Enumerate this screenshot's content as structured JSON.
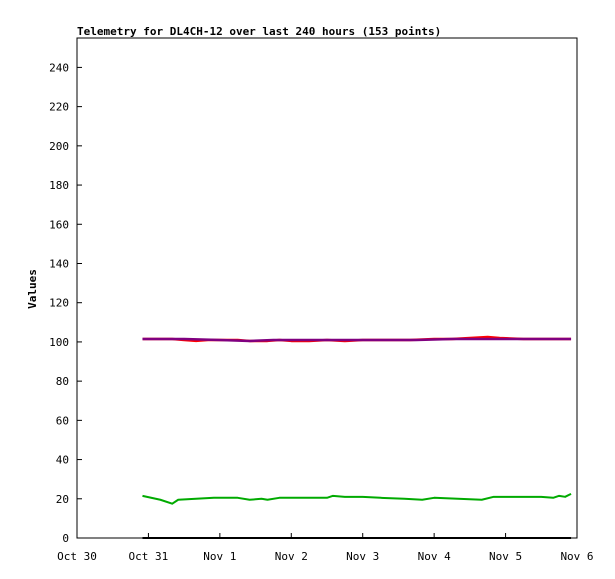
{
  "chart_data": {
    "type": "line",
    "title": "Telemetry for DL4CH-12 over last 240 hours (153 points)",
    "ylabel": "Values",
    "xlabel": "",
    "ylim": [
      0,
      255
    ],
    "grid": false,
    "legend": "none",
    "x_range": [
      "2023-10-30T00:00",
      "2023-11-06T00:00"
    ],
    "x_ticks": [
      {
        "date": "2023-10-30T00:00",
        "label": "Oct 30"
      },
      {
        "date": "2023-10-31T00:00",
        "label": "Oct 31"
      },
      {
        "date": "2023-11-01T00:00",
        "label": "Nov 1"
      },
      {
        "date": "2023-11-02T00:00",
        "label": "Nov 2"
      },
      {
        "date": "2023-11-03T00:00",
        "label": "Nov 3"
      },
      {
        "date": "2023-11-04T00:00",
        "label": "Nov 4"
      },
      {
        "date": "2023-11-05T00:00",
        "label": "Nov 5"
      },
      {
        "date": "2023-11-06T00:00",
        "label": "Nov 6"
      }
    ],
    "y_ticks": [
      0,
      20,
      40,
      60,
      80,
      100,
      120,
      140,
      160,
      180,
      200,
      220,
      240
    ],
    "series": [
      {
        "color": "#ff0000",
        "points": [
          [
            "2023-10-30T22:00",
            101.5
          ],
          [
            "2023-10-31T08:00",
            101.5
          ],
          [
            "2023-10-31T12:00",
            101.0
          ],
          [
            "2023-10-31T16:00",
            100.5
          ],
          [
            "2023-10-31T20:00",
            101.0
          ],
          [
            "2023-11-01T00:00",
            101.0
          ],
          [
            "2023-11-01T06:00",
            101.0
          ],
          [
            "2023-11-01T10:00",
            100.5
          ],
          [
            "2023-11-01T16:00",
            100.5
          ],
          [
            "2023-11-01T20:00",
            101.0
          ],
          [
            "2023-11-02T00:00",
            100.5
          ],
          [
            "2023-11-02T06:00",
            100.5
          ],
          [
            "2023-11-02T12:00",
            101.0
          ],
          [
            "2023-11-02T18:00",
            100.5
          ],
          [
            "2023-11-03T00:00",
            101.0
          ],
          [
            "2023-11-03T08:00",
            101.0
          ],
          [
            "2023-11-03T16:00",
            101.0
          ],
          [
            "2023-11-04T00:00",
            101.5
          ],
          [
            "2023-11-04T06:00",
            101.5
          ],
          [
            "2023-11-04T12:00",
            102.0
          ],
          [
            "2023-11-04T18:00",
            102.5
          ],
          [
            "2023-11-04T22:00",
            102.0
          ],
          [
            "2023-11-05T06:00",
            101.5
          ],
          [
            "2023-11-05T14:00",
            101.5
          ],
          [
            "2023-11-05T22:00",
            101.5
          ]
        ]
      },
      {
        "color": "#800080",
        "points": [
          [
            "2023-10-30T22:00",
            101.5
          ],
          [
            "2023-10-31T12:00",
            101.5
          ],
          [
            "2023-11-01T00:00",
            101.0
          ],
          [
            "2023-11-01T10:00",
            100.5
          ],
          [
            "2023-11-01T18:00",
            101.0
          ],
          [
            "2023-11-02T06:00",
            101.0
          ],
          [
            "2023-11-02T18:00",
            101.0
          ],
          [
            "2023-11-03T06:00",
            101.0
          ],
          [
            "2023-11-03T18:00",
            101.0
          ],
          [
            "2023-11-04T06:00",
            101.5
          ],
          [
            "2023-11-04T18:00",
            101.5
          ],
          [
            "2023-11-05T06:00",
            101.5
          ],
          [
            "2023-11-05T22:00",
            101.5
          ]
        ]
      },
      {
        "color": "#00aa00",
        "points": [
          [
            "2023-10-30T22:00",
            21.5
          ],
          [
            "2023-10-31T04:00",
            19.5
          ],
          [
            "2023-10-31T08:00",
            17.5
          ],
          [
            "2023-10-31T10:00",
            19.5
          ],
          [
            "2023-10-31T16:00",
            20.0
          ],
          [
            "2023-10-31T22:00",
            20.5
          ],
          [
            "2023-11-01T06:00",
            20.5
          ],
          [
            "2023-11-01T10:00",
            19.5
          ],
          [
            "2023-11-01T14:00",
            20.0
          ],
          [
            "2023-11-01T16:00",
            19.5
          ],
          [
            "2023-11-01T20:00",
            20.5
          ],
          [
            "2023-11-02T06:00",
            20.5
          ],
          [
            "2023-11-02T12:00",
            20.5
          ],
          [
            "2023-11-02T14:00",
            21.5
          ],
          [
            "2023-11-02T18:00",
            21.0
          ],
          [
            "2023-11-03T00:00",
            21.0
          ],
          [
            "2023-11-03T06:00",
            20.5
          ],
          [
            "2023-11-03T14:00",
            20.0
          ],
          [
            "2023-11-03T20:00",
            19.5
          ],
          [
            "2023-11-04T00:00",
            20.5
          ],
          [
            "2023-11-04T08:00",
            20.0
          ],
          [
            "2023-11-04T16:00",
            19.5
          ],
          [
            "2023-11-04T20:00",
            21.0
          ],
          [
            "2023-11-05T04:00",
            21.0
          ],
          [
            "2023-11-05T12:00",
            21.0
          ],
          [
            "2023-11-05T16:00",
            20.5
          ],
          [
            "2023-11-05T18:00",
            21.5
          ],
          [
            "2023-11-05T20:00",
            21.0
          ],
          [
            "2023-11-05T22:00",
            22.5
          ]
        ]
      },
      {
        "color": "#000000",
        "points": [
          [
            "2023-10-30T22:00",
            0
          ],
          [
            "2023-11-05T22:00",
            0
          ]
        ]
      }
    ]
  }
}
